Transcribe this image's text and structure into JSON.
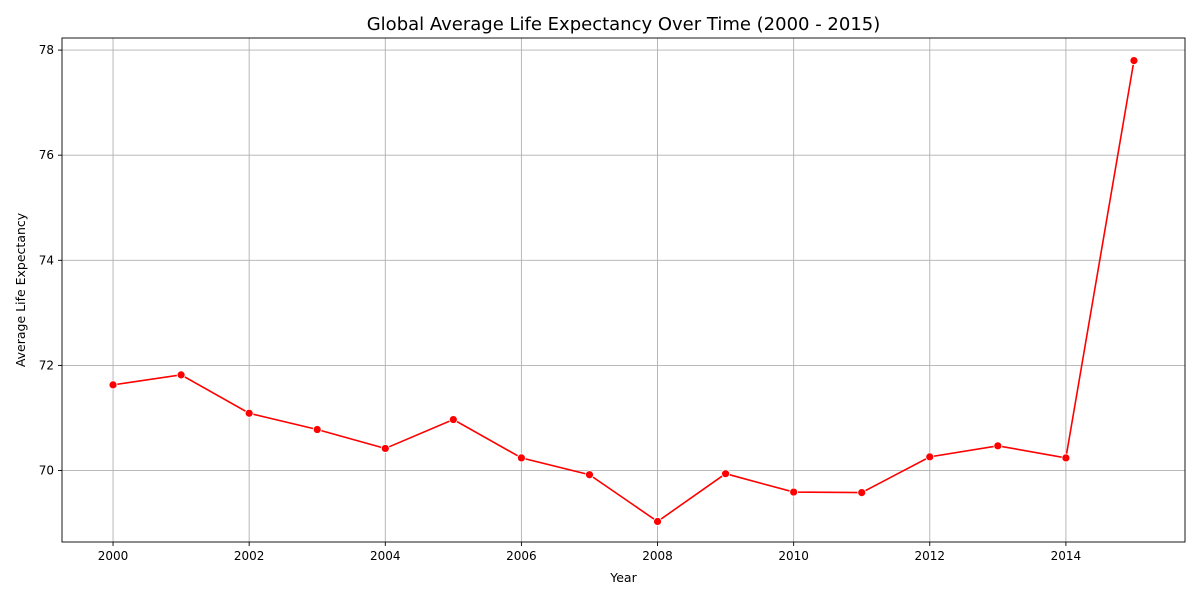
{
  "chart_data": {
    "type": "line",
    "title": "Global Average Life Expectancy Over Time (2000 - 2015)",
    "xlabel": "Year",
    "ylabel": "Average Life Expectancy",
    "x": [
      2000,
      2001,
      2002,
      2003,
      2004,
      2005,
      2006,
      2007,
      2008,
      2009,
      2010,
      2011,
      2012,
      2013,
      2014,
      2015
    ],
    "series": [
      {
        "values": [
          71.63,
          71.82,
          71.09,
          70.78,
          70.42,
          70.97,
          70.24,
          69.92,
          69.03,
          69.94,
          69.59,
          69.58,
          70.26,
          70.47,
          70.24,
          77.8
        ],
        "color": "#ff0000",
        "marker": "circle"
      }
    ],
    "xlim": [
      1999.25,
      2015.75
    ],
    "ylim": [
      68.64,
      78.23
    ],
    "xticks": [
      "2000",
      "2002",
      "2004",
      "2006",
      "2008",
      "2010",
      "2012",
      "2014"
    ],
    "yticks": [
      "70",
      "72",
      "74",
      "76",
      "78"
    ],
    "grid": true
  }
}
